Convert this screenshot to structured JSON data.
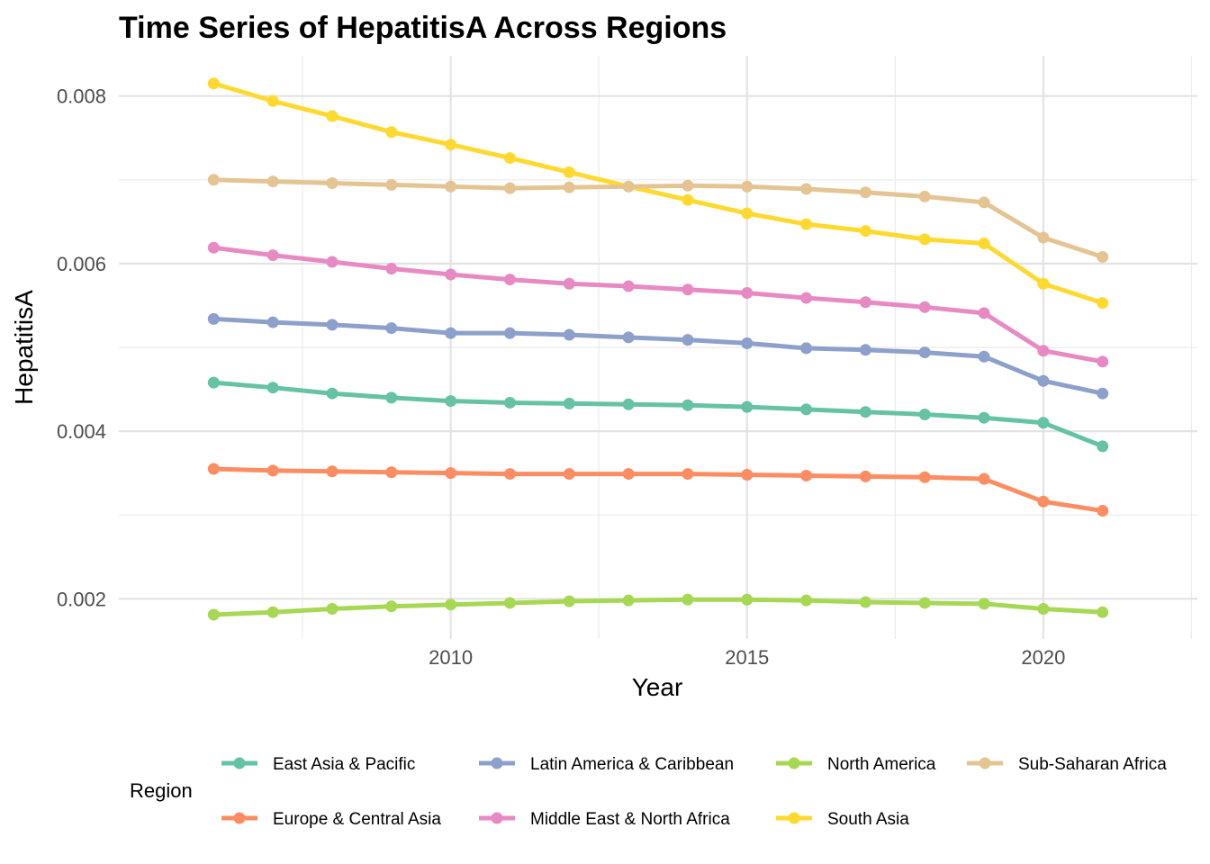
{
  "chart_data": {
    "type": "line",
    "title": "Time Series of HepatitisA Across Regions",
    "xlabel": "Year",
    "ylabel": "HepatitisA",
    "x": [
      2006,
      2007,
      2008,
      2009,
      2010,
      2011,
      2012,
      2013,
      2014,
      2015,
      2016,
      2017,
      2018,
      2019,
      2020,
      2021
    ],
    "xlim": [
      2004.4,
      2022.6
    ],
    "ylim": [
      0.00152,
      0.00848
    ],
    "xticks": [
      2010,
      2015,
      2020
    ],
    "xtick_labels": [
      "2010",
      "2015",
      "2020"
    ],
    "yticks": [
      0.002,
      0.004,
      0.006,
      0.008
    ],
    "ytick_labels": [
      "0.002",
      "0.004",
      "0.006",
      "0.008"
    ],
    "grid": true,
    "legend_title": "Region",
    "legend_position": "bottom",
    "series": [
      {
        "name": "East Asia & Pacific",
        "color": "#66c2a5",
        "values": [
          0.00458,
          0.00452,
          0.00445,
          0.0044,
          0.00436,
          0.00434,
          0.00433,
          0.00432,
          0.00431,
          0.00429,
          0.00426,
          0.00423,
          0.0042,
          0.00416,
          0.0041,
          0.00382
        ]
      },
      {
        "name": "Europe & Central Asia",
        "color": "#fc8d62",
        "values": [
          0.00355,
          0.00353,
          0.00352,
          0.00351,
          0.0035,
          0.00349,
          0.00349,
          0.00349,
          0.00349,
          0.00348,
          0.00347,
          0.00346,
          0.00345,
          0.00343,
          0.00316,
          0.00305
        ]
      },
      {
        "name": "Latin America & Caribbean",
        "color": "#8da0cb",
        "values": [
          0.00534,
          0.0053,
          0.00527,
          0.00523,
          0.00517,
          0.00517,
          0.00515,
          0.00512,
          0.00509,
          0.00505,
          0.00499,
          0.00497,
          0.00494,
          0.00489,
          0.0046,
          0.00445
        ]
      },
      {
        "name": "Middle East & North Africa",
        "color": "#e78ac3",
        "values": [
          0.00619,
          0.0061,
          0.00602,
          0.00594,
          0.00587,
          0.00581,
          0.00576,
          0.00573,
          0.00569,
          0.00565,
          0.00559,
          0.00554,
          0.00548,
          0.00541,
          0.00496,
          0.00483
        ]
      },
      {
        "name": "North America",
        "color": "#a6d854",
        "values": [
          0.00181,
          0.00184,
          0.00188,
          0.00191,
          0.00193,
          0.00195,
          0.00197,
          0.00198,
          0.00199,
          0.00199,
          0.00198,
          0.00196,
          0.00195,
          0.00194,
          0.00188,
          0.00184
        ]
      },
      {
        "name": "South Asia",
        "color": "#ffd92f",
        "values": [
          0.00815,
          0.00794,
          0.00776,
          0.00757,
          0.00742,
          0.00726,
          0.00709,
          0.00692,
          0.00676,
          0.0066,
          0.00647,
          0.00639,
          0.00629,
          0.00624,
          0.00576,
          0.00553
        ]
      },
      {
        "name": "Sub-Saharan Africa",
        "color": "#e5c494",
        "values": [
          0.007,
          0.00698,
          0.00696,
          0.00694,
          0.00692,
          0.0069,
          0.00691,
          0.00692,
          0.00693,
          0.00692,
          0.00689,
          0.00685,
          0.0068,
          0.00673,
          0.00631,
          0.00608
        ]
      }
    ]
  }
}
